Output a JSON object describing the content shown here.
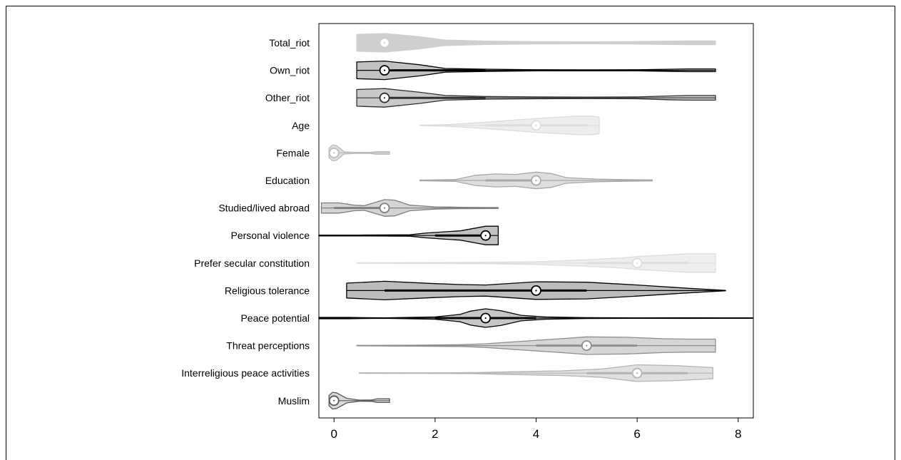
{
  "chart_data": {
    "type": "violin",
    "title": "",
    "xlabel": "",
    "ylabel": "",
    "xlim": [
      -0.3,
      8.3
    ],
    "xticks": [
      0,
      2,
      4,
      6,
      8
    ],
    "xtick_labels": [
      "0",
      "2",
      "4",
      "6",
      "8"
    ],
    "grid": false,
    "series": [
      {
        "name": "Total_riot",
        "color": "#cfcfcf",
        "stroke": "#cfcfcf",
        "min": 0.45,
        "max": 7.55,
        "q1": 1,
        "median": 1,
        "q3": 3,
        "density": [
          [
            0.45,
            0.9
          ],
          [
            1,
            1
          ],
          [
            1.7,
            0.65
          ],
          [
            2.2,
            0.3
          ],
          [
            3,
            0.18
          ],
          [
            4,
            0.12
          ],
          [
            5,
            0.1
          ],
          [
            6,
            0.14
          ],
          [
            7,
            0.2
          ],
          [
            7.55,
            0.2
          ]
        ]
      },
      {
        "name": "Own_riot",
        "color": "#c2c2c2",
        "stroke": "#000000",
        "min": 0.45,
        "max": 7.55,
        "q1": 1,
        "median": 1,
        "q3": 3,
        "density": [
          [
            0.45,
            0.9
          ],
          [
            1,
            1
          ],
          [
            1.7,
            0.6
          ],
          [
            2.2,
            0.2
          ],
          [
            3,
            0.12
          ],
          [
            4,
            0.06
          ],
          [
            5,
            0.05
          ],
          [
            6,
            0.06
          ],
          [
            6.7,
            0.12
          ],
          [
            7,
            0.15
          ],
          [
            7.55,
            0.15
          ]
        ]
      },
      {
        "name": "Other_riot",
        "color": "#c9c9c9",
        "stroke": "#303030",
        "min": 0.45,
        "max": 7.55,
        "q1": 1,
        "median": 1,
        "q3": 3,
        "density": [
          [
            0.45,
            0.9
          ],
          [
            1,
            1
          ],
          [
            1.7,
            0.6
          ],
          [
            2.2,
            0.25
          ],
          [
            3,
            0.15
          ],
          [
            4,
            0.1
          ],
          [
            5,
            0.08
          ],
          [
            6,
            0.1
          ],
          [
            6.6,
            0.2
          ],
          [
            7,
            0.25
          ],
          [
            7.55,
            0.25
          ]
        ]
      },
      {
        "name": "Age",
        "color": "#ededed",
        "stroke": "#dcdcdc",
        "min": 1.7,
        "max": 5.25,
        "q1": 3,
        "median": 4,
        "q3": 5,
        "density": [
          [
            1.7,
            0.02
          ],
          [
            2.3,
            0.1
          ],
          [
            3,
            0.35
          ],
          [
            3.5,
            0.55
          ],
          [
            4,
            0.75
          ],
          [
            4.5,
            0.9
          ],
          [
            4.8,
            1
          ],
          [
            5.1,
            1
          ],
          [
            5.25,
            0.9
          ]
        ]
      },
      {
        "name": "Female",
        "color": "#dcdcdc",
        "stroke": "#bdbdbd",
        "min": -0.1,
        "max": 1.1,
        "q1": 0,
        "median": 0,
        "q3": 0,
        "density": [
          [
            -0.1,
            0.5
          ],
          [
            -0.03,
            0.85
          ],
          [
            0.05,
            0.8
          ],
          [
            0.2,
            0.12
          ],
          [
            0.4,
            0.06
          ],
          [
            0.7,
            0.06
          ],
          [
            0.85,
            0.15
          ],
          [
            1.1,
            0.15
          ]
        ]
      },
      {
        "name": "Education",
        "color": "#dedede",
        "stroke": "#a8a8a8",
        "min": 1.7,
        "max": 6.3,
        "q1": 3,
        "median": 4,
        "q3": 4,
        "density": [
          [
            1.7,
            0.04
          ],
          [
            2.4,
            0.1
          ],
          [
            2.8,
            0.55
          ],
          [
            3.2,
            0.7
          ],
          [
            3.6,
            0.65
          ],
          [
            4,
            0.9
          ],
          [
            4.3,
            0.75
          ],
          [
            4.6,
            0.3
          ],
          [
            5.2,
            0.15
          ],
          [
            5.6,
            0.1
          ],
          [
            6.3,
            0.05
          ]
        ]
      },
      {
        "name": "Studied/lived abroad",
        "color": "#d4d4d4",
        "stroke": "#7f7f7f",
        "min": -0.25,
        "max": 3.25,
        "q1": 0,
        "median": 1,
        "q3": 1,
        "density": [
          [
            -0.25,
            0.55
          ],
          [
            0.1,
            0.55
          ],
          [
            0.4,
            0.3
          ],
          [
            0.6,
            0.25
          ],
          [
            1,
            0.9
          ],
          [
            1.2,
            0.85
          ],
          [
            1.5,
            0.3
          ],
          [
            2,
            0.12
          ],
          [
            2.5,
            0.08
          ],
          [
            3.25,
            0.05
          ]
        ]
      },
      {
        "name": "Personal violence",
        "color": "#c2c2c2",
        "stroke": "#000000",
        "min": -0.3,
        "max": 3.25,
        "q1": 2,
        "median": 3,
        "q3": 3,
        "density": [
          [
            -0.3,
            0.05
          ],
          [
            0.5,
            0.05
          ],
          [
            1,
            0.06
          ],
          [
            1.5,
            0.08
          ],
          [
            1.8,
            0.25
          ],
          [
            2.2,
            0.4
          ],
          [
            2.5,
            0.5
          ],
          [
            2.8,
            0.8
          ],
          [
            3,
            1
          ],
          [
            3.25,
            1
          ]
        ]
      },
      {
        "name": "Prefer secular constitution",
        "color": "#eeeeee",
        "stroke": "#dddddd",
        "min": 0.45,
        "max": 7.55,
        "q1": 5,
        "median": 6,
        "q3": 7,
        "density": [
          [
            0.45,
            0.03
          ],
          [
            2,
            0.05
          ],
          [
            3,
            0.08
          ],
          [
            4,
            0.15
          ],
          [
            5,
            0.35
          ],
          [
            5.7,
            0.55
          ],
          [
            6,
            0.7
          ],
          [
            6.5,
            0.85
          ],
          [
            7,
            1
          ],
          [
            7.55,
            1
          ]
        ]
      },
      {
        "name": "Religious tolerance",
        "color": "#bcbcbc",
        "stroke": "#000000",
        "min": 0.25,
        "max": 7.75,
        "q1": 1,
        "median": 4,
        "q3": 5,
        "density": [
          [
            0.25,
            0.8
          ],
          [
            1,
            1
          ],
          [
            2,
            0.75
          ],
          [
            2.5,
            0.65
          ],
          [
            3,
            0.6
          ],
          [
            4,
            0.95
          ],
          [
            5,
            0.9
          ],
          [
            6,
            0.6
          ],
          [
            7,
            0.25
          ],
          [
            7.75,
            0.02
          ]
        ]
      },
      {
        "name": "Peace potential",
        "color": "#c6c6c6",
        "stroke": "#000000",
        "min": -0.3,
        "max": 8.3,
        "q1": 2,
        "median": 3,
        "q3": 4,
        "density": [
          [
            -0.3,
            0.08
          ],
          [
            0.3,
            0.08
          ],
          [
            0.6,
            0.05
          ],
          [
            1,
            0.02
          ],
          [
            2,
            0.12
          ],
          [
            2.5,
            0.4
          ],
          [
            2.7,
            0.75
          ],
          [
            3,
            1
          ],
          [
            3.3,
            0.8
          ],
          [
            3.7,
            0.3
          ],
          [
            4.2,
            0.12
          ],
          [
            5,
            0.05
          ],
          [
            6,
            0.02
          ],
          [
            7,
            0.04
          ],
          [
            8.3,
            0.02
          ]
        ]
      },
      {
        "name": "Threat perceptions",
        "color": "#d6d6d6",
        "stroke": "#8f8f8f",
        "min": 0.45,
        "max": 7.55,
        "q1": 4,
        "median": 5,
        "q3": 6,
        "density": [
          [
            0.45,
            0.02
          ],
          [
            1.5,
            0.05
          ],
          [
            2.5,
            0.1
          ],
          [
            3,
            0.2
          ],
          [
            3.8,
            0.5
          ],
          [
            4.5,
            0.75
          ],
          [
            5,
            0.95
          ],
          [
            5.8,
            0.9
          ],
          [
            6.5,
            0.75
          ],
          [
            7,
            0.7
          ],
          [
            7.55,
            0.7
          ]
        ]
      },
      {
        "name": "Interreligious peace activities",
        "color": "#e0e0e0",
        "stroke": "#b4b4b4",
        "min": 0.5,
        "max": 7.5,
        "q1": 5,
        "median": 6,
        "q3": 7,
        "density": [
          [
            0.5,
            0.02
          ],
          [
            2,
            0.03
          ],
          [
            2.8,
            0.06
          ],
          [
            3.5,
            0.15
          ],
          [
            4.5,
            0.25
          ],
          [
            5.3,
            0.45
          ],
          [
            6,
            0.9
          ],
          [
            6.8,
            0.8
          ],
          [
            7.5,
            0.6
          ]
        ]
      },
      {
        "name": "Muslim",
        "color": "#d8d8d8",
        "stroke": "#5a5a5a",
        "min": -0.1,
        "max": 1.1,
        "q1": 0,
        "median": 0,
        "q3": 0,
        "density": [
          [
            -0.1,
            0.55
          ],
          [
            -0.03,
            0.9
          ],
          [
            0.05,
            0.85
          ],
          [
            0.25,
            0.25
          ],
          [
            0.5,
            0.06
          ],
          [
            0.75,
            0.08
          ],
          [
            0.85,
            0.2
          ],
          [
            1.1,
            0.2
          ]
        ]
      }
    ]
  }
}
